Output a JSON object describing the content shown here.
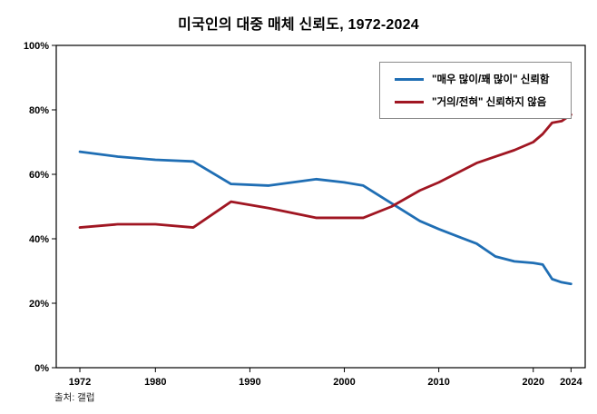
{
  "chart_data": {
    "type": "line",
    "title": "미국인의 대중 매체 신뢰도, 1972-2024",
    "source": "출처: 갤럽",
    "x": [
      1972,
      1976,
      1980,
      1984,
      1988,
      1992,
      1997,
      2000,
      2002,
      2005,
      2008,
      2010,
      2014,
      2016,
      2018,
      2020,
      2021,
      2022,
      2023,
      2024
    ],
    "series": [
      {
        "name": "\"매우 많이/꽤 많이\" 신뢰함",
        "color": "#1f6eb4",
        "values": [
          67,
          65.5,
          64.5,
          64,
          57,
          56.5,
          58.5,
          57.5,
          56.5,
          51,
          45.5,
          43,
          38.5,
          34.5,
          33,
          32.5,
          32,
          27.5,
          26.5,
          26
        ]
      },
      {
        "name": "\"거의/전혀\" 신뢰하지 않음",
        "color": "#a01622",
        "values": [
          43.5,
          44.5,
          44.5,
          43.5,
          51.5,
          49.5,
          46.5,
          46.5,
          46.5,
          50,
          55,
          57.5,
          63.5,
          65.5,
          67.5,
          70,
          72.5,
          76,
          76.5,
          78.5
        ]
      }
    ],
    "x_ticks": [
      1972,
      1980,
      1990,
      2000,
      2010,
      2020,
      2024
    ],
    "y_ticks": [
      0,
      20,
      40,
      60,
      80,
      100
    ],
    "y_tick_suffix": "%",
    "xlim": [
      1969.5,
      2025.5
    ],
    "ylim": [
      0,
      100
    ],
    "grid": false,
    "legend_position": "top-right"
  }
}
